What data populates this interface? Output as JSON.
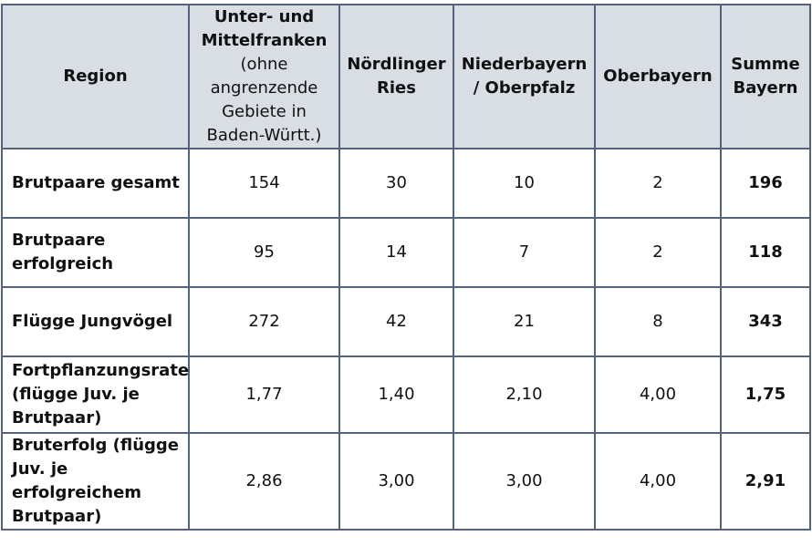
{
  "table": {
    "headers": {
      "region": "Region",
      "unter_mittelfranken_main": "Unter- und Mittelfranken",
      "unter_mittelfranken_sub": "(ohne angrenzende Gebiete in Baden-Württ.)",
      "noerdlinger_ries": "Nördlinger Ries",
      "niederbayern_oberpfalz": "Niederbayern / Oberpfalz",
      "oberbayern": "Oberbayern",
      "summe_bayern": "Summe Bayern"
    },
    "rows": [
      {
        "label": "Brutpaare gesamt",
        "values": [
          "154",
          "30",
          "10",
          "2"
        ],
        "total": "196"
      },
      {
        "label": "Brutpaare erfolgreich",
        "values": [
          "95",
          "14",
          "7",
          "2"
        ],
        "total": "118"
      },
      {
        "label": "Flügge Jungvögel",
        "values": [
          "272",
          "42",
          "21",
          "8"
        ],
        "total": "343"
      },
      {
        "label": "Fortpflanzungsrate (flügge Juv. je Brutpaar)",
        "values": [
          "1,77",
          "1,40",
          "2,10",
          "4,00"
        ],
        "total": "1,75"
      },
      {
        "label": "Bruterfolg (flügge Juv. je erfolgreichem Brutpaar)",
        "values": [
          "2,86",
          "3,00",
          "3,00",
          "4,00"
        ],
        "total": "2,91"
      }
    ]
  },
  "colors": {
    "header_background": "#d9dde4",
    "border": "#55637a",
    "text": "#111111"
  }
}
